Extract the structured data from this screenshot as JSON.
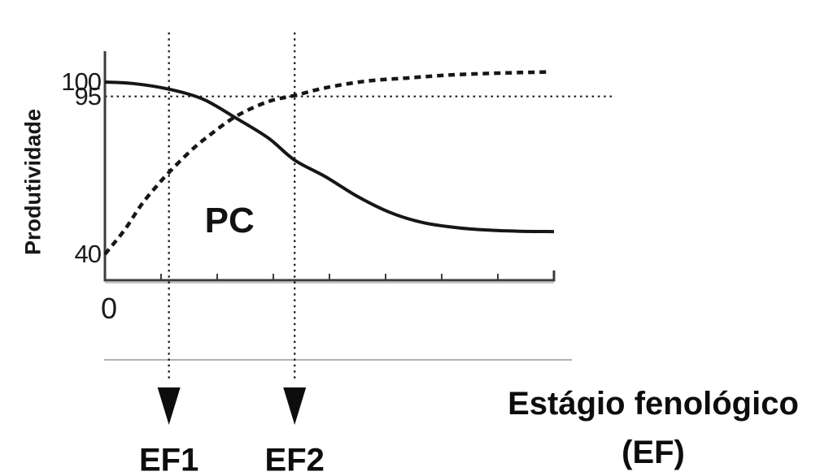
{
  "figure": {
    "background": "#ffffff",
    "x_label_line1": "Estágio fenológico",
    "x_label_line2": "(EF)",
    "colors": {
      "ink": "#161616",
      "axis": "#3c3c3c",
      "faint": "#b3b3b3",
      "axis_shadow": "#a8a8a8"
    }
  },
  "chart_data": {
    "type": "line",
    "title": "",
    "xlabel": "Estágio fenológico (EF)",
    "ylabel": "Produtividade",
    "x_origin_label": "0",
    "xlim_stages": [
      0,
      8
    ],
    "ylim": [
      31,
      117
    ],
    "grid": false,
    "legend": null,
    "y_ticks": [
      {
        "value": 100,
        "label": "100"
      },
      {
        "value": 95,
        "label": "95"
      },
      {
        "value": 40,
        "label": "40"
      }
    ],
    "x_tick_stages": [
      1,
      2,
      3,
      4,
      5,
      6,
      7
    ],
    "reference_lines": {
      "horizontal_value": 95
    },
    "markers": [
      {
        "label": "EF1",
        "stage": 1.14
      },
      {
        "label": "EF2",
        "stage": 3.38
      }
    ],
    "annotations": [
      {
        "text": "PC",
        "stage": 2.22,
        "value": 51.5
      }
    ],
    "series": [
      {
        "name": "solid-productivity-curve",
        "line_style": "solid",
        "points": [
          [
            0,
            100
          ],
          [
            0.5,
            99.5
          ],
          [
            1.14,
            97.5
          ],
          [
            1.75,
            94
          ],
          [
            2.33,
            87.5
          ],
          [
            2.91,
            80.5
          ],
          [
            3.38,
            72.8
          ],
          [
            3.93,
            67
          ],
          [
            4.51,
            60
          ],
          [
            5.09,
            54.5
          ],
          [
            5.67,
            51
          ],
          [
            6.25,
            49.3
          ],
          [
            6.83,
            48.4
          ],
          [
            7.41,
            48
          ],
          [
            8,
            47.9
          ]
        ]
      },
      {
        "name": "dashed-rising-curve",
        "line_style": "dashed",
        "points": [
          [
            0,
            40
          ],
          [
            0.35,
            48.5
          ],
          [
            0.64,
            57
          ],
          [
            0.91,
            63.5
          ],
          [
            1.14,
            68.5
          ],
          [
            1.51,
            75.7
          ],
          [
            1.8,
            80.5
          ],
          [
            2.33,
            88
          ],
          [
            2.91,
            93.2
          ],
          [
            3.38,
            95.3
          ],
          [
            3.93,
            98
          ],
          [
            4.65,
            100.3
          ],
          [
            5.38,
            101.4
          ],
          [
            6.1,
            102.4
          ],
          [
            6.83,
            103
          ],
          [
            7.41,
            103.3
          ],
          [
            7.88,
            103.5
          ]
        ]
      }
    ]
  }
}
